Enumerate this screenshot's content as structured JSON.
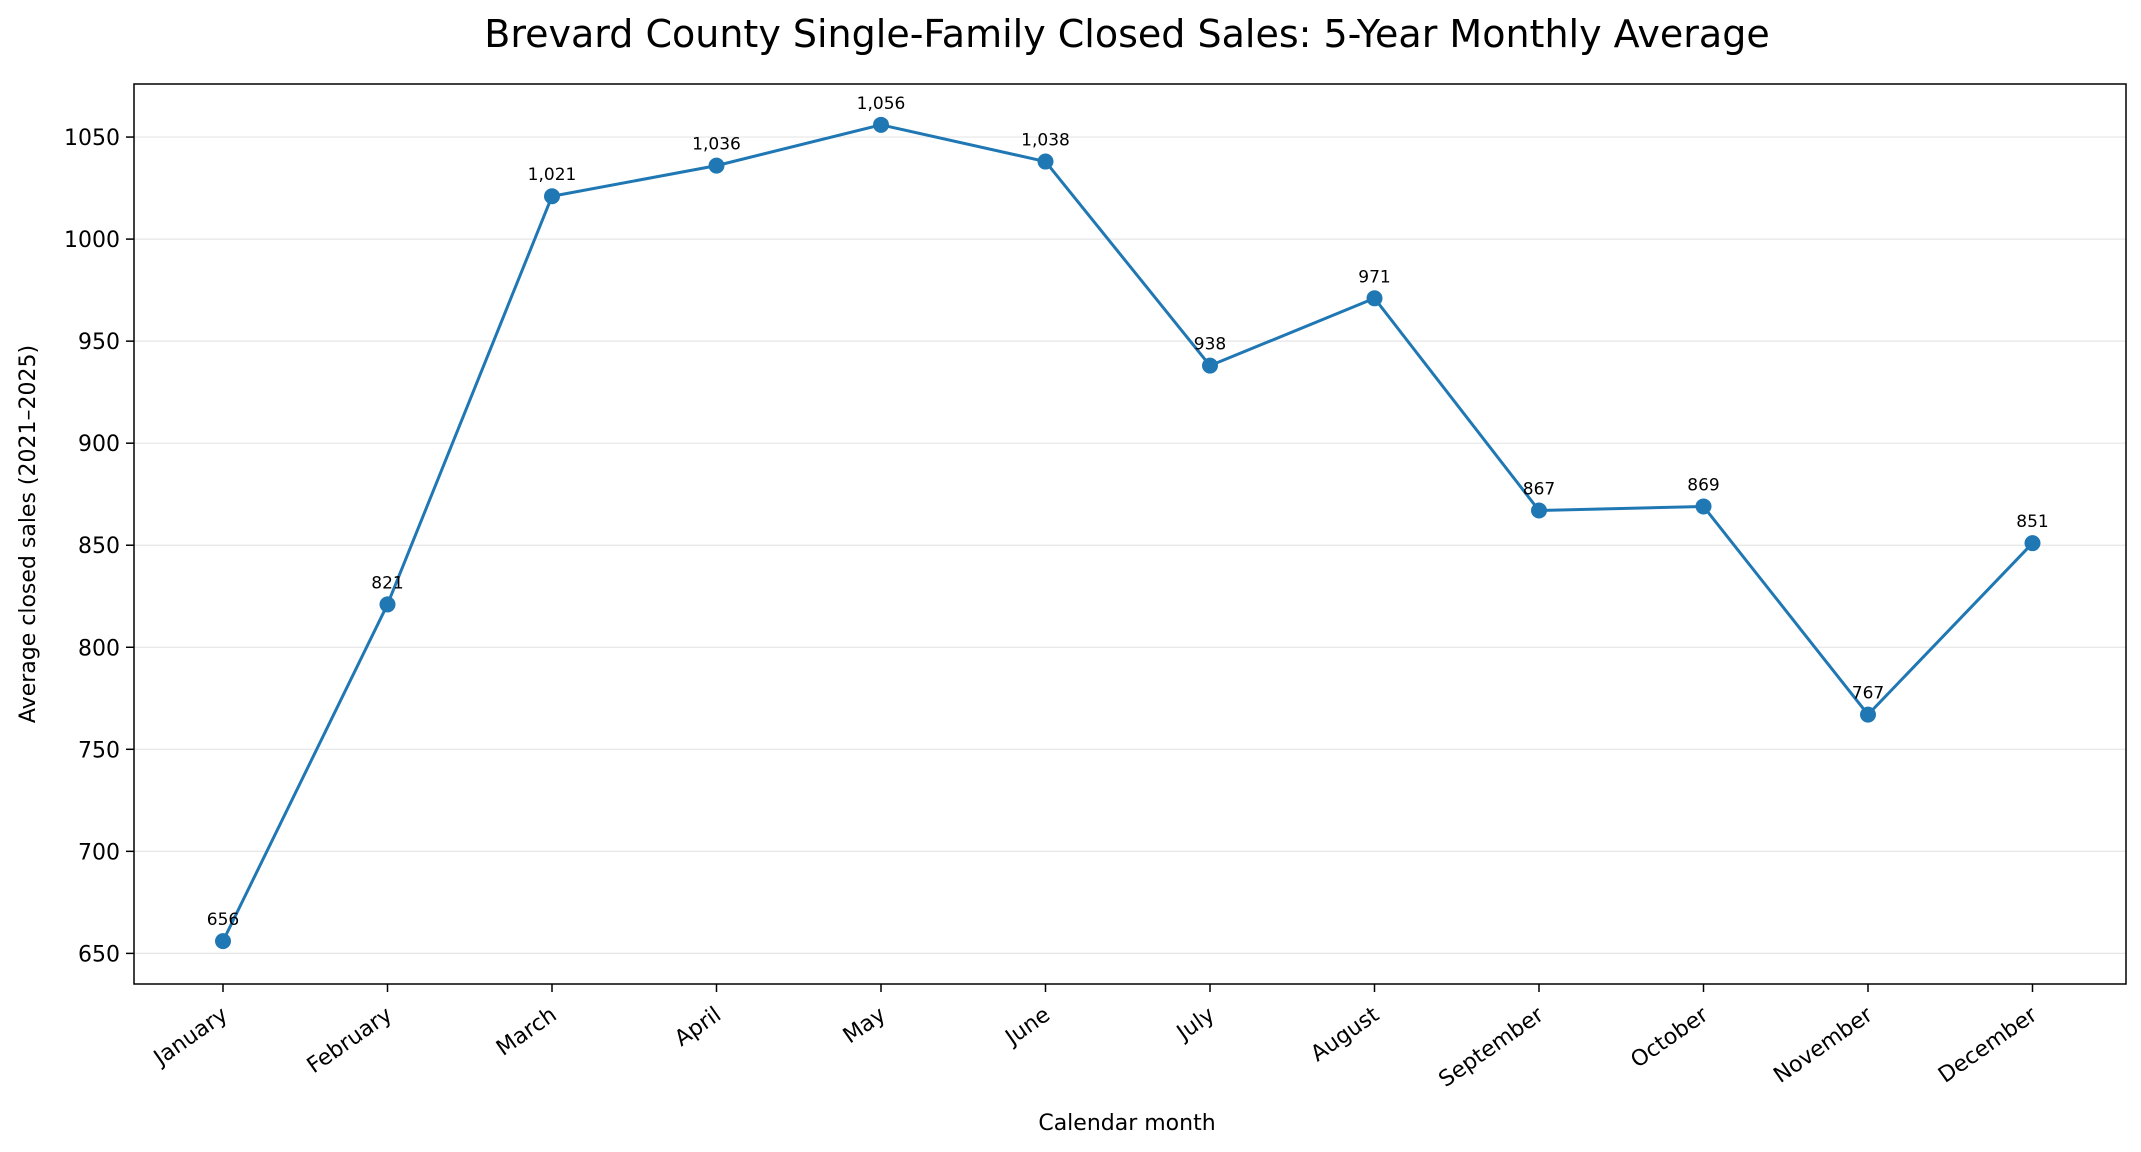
{
  "chart_data": {
    "type": "line",
    "title": "Brevard County Single-Family Closed Sales: 5-Year Monthly Average",
    "xlabel": "Calendar month",
    "ylabel": "Average closed sales (2021–2025)",
    "categories": [
      "January",
      "February",
      "March",
      "April",
      "May",
      "June",
      "July",
      "August",
      "September",
      "October",
      "November",
      "December"
    ],
    "series": [
      {
        "values": [
          656,
          821,
          1021,
          1036,
          1056,
          1038,
          938,
          971,
          867,
          869,
          767,
          851
        ]
      }
    ],
    "data_labels": [
      "656",
      "821",
      "1,021",
      "1,036",
      "1,056",
      "1,038",
      "938",
      "971",
      "867",
      "869",
      "767",
      "851"
    ],
    "ylim": [
      635,
      1076
    ],
    "yticks": [
      650,
      700,
      750,
      800,
      850,
      900,
      950,
      1000,
      1050
    ],
    "grid": "y-axis only",
    "legend": "none",
    "colors": {
      "line": "#1f77b4",
      "grid": "#e6e6e6",
      "axes": "#000000"
    }
  }
}
